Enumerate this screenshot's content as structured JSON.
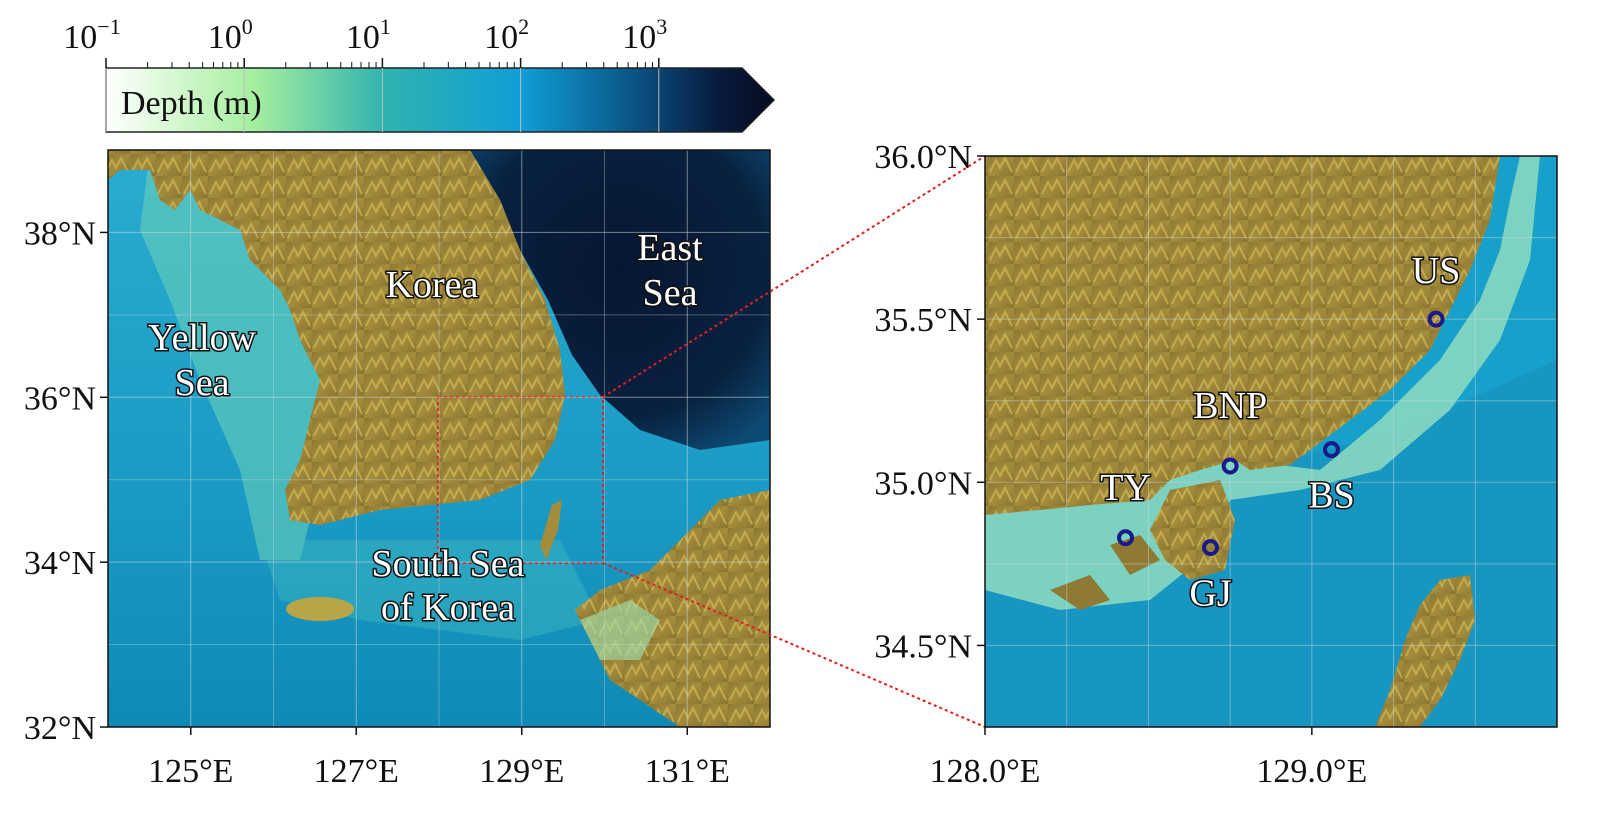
{
  "colorbar": {
    "label": "Depth (m)",
    "base": "10",
    "exponents": [
      "−1",
      "0",
      "1",
      "2",
      "3"
    ],
    "scale": "log",
    "range": [
      0.1,
      4000
    ],
    "colors": [
      "#ffffff",
      "#a6ef9e",
      "#2fb2b0",
      "#0f9fd6",
      "#0a4f80",
      "#071a3c",
      "#050b1e"
    ]
  },
  "left_map": {
    "x_ticks": [
      "125°E",
      "127°E",
      "129°E",
      "131°E"
    ],
    "y_ticks": [
      "38°N",
      "36°N",
      "34°N",
      "32°N"
    ],
    "lon_range": [
      124,
      132
    ],
    "lat_range": [
      32,
      39
    ],
    "labels": {
      "yellow_sea": [
        "Yellow",
        "Sea"
      ],
      "korea": "Korea",
      "east_sea": [
        "East",
        "Sea"
      ],
      "south_sea": [
        "South Sea",
        "of Korea"
      ]
    },
    "inset_box": {
      "lon": [
        128,
        130
      ],
      "lat": [
        34,
        36
      ]
    }
  },
  "right_map": {
    "x_ticks": [
      "128.0°E",
      "129.0°E"
    ],
    "y_ticks": [
      "36.0°N",
      "35.5°N",
      "35.0°N",
      "34.5°N"
    ],
    "lon_range": [
      128,
      129.75
    ],
    "lat_range": [
      34.25,
      36
    ],
    "stations": [
      {
        "name": "US",
        "lon": 129.38,
        "lat": 35.5
      },
      {
        "name": "BNP",
        "lon": 128.75,
        "lat": 35.05
      },
      {
        "name": "BS",
        "lon": 129.06,
        "lat": 35.1
      },
      {
        "name": "TY",
        "lon": 128.43,
        "lat": 34.83
      },
      {
        "name": "GJ",
        "lon": 128.69,
        "lat": 34.8
      }
    ]
  },
  "colors": {
    "land": "#8f7a34",
    "land_high": "#e6d46b",
    "shallow": "#9fe3b0",
    "shelf": "#1aa3c8",
    "deep": "#061535",
    "inset_line": "#e02020",
    "station_marker": "#1a1a8a"
  }
}
